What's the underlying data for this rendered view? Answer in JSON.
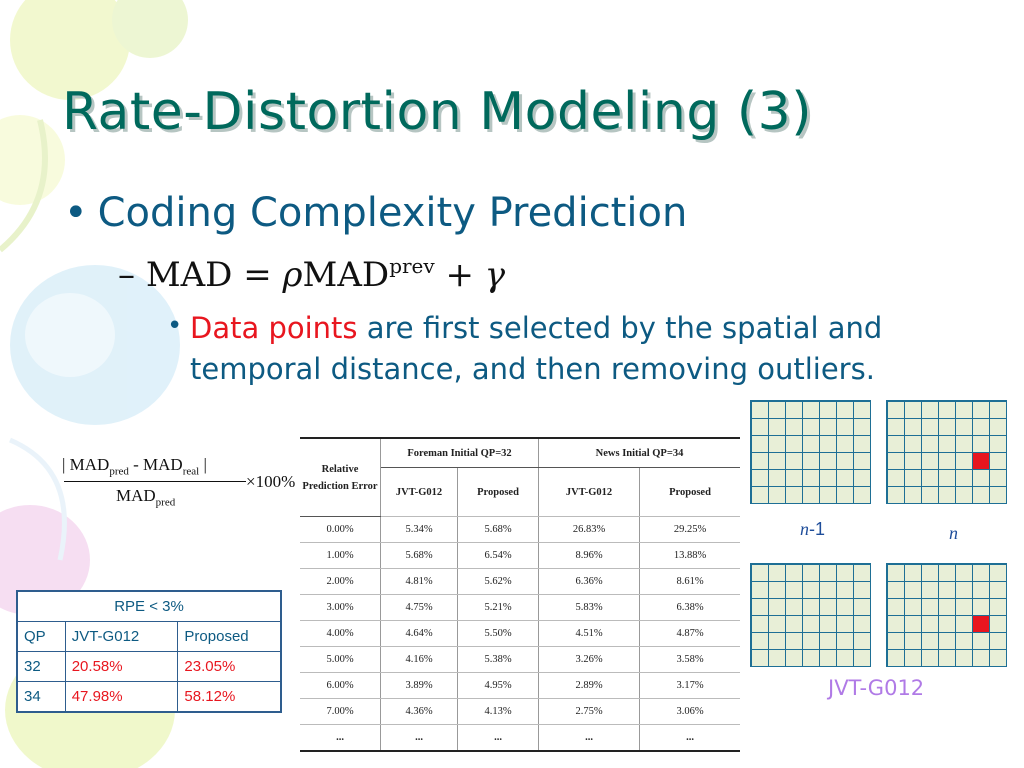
{
  "slide": {
    "title": "Rate-Distortion Modeling (3)",
    "bullet1": "Coding Complexity Prediction",
    "bullet2": {
      "dash": "–",
      "lhs": "MAD = ",
      "rho": "ρ",
      "mad": "MAD",
      "sup": "prev",
      "tail": " + ",
      "gamma": "γ"
    },
    "bullet3": {
      "red": "Data points",
      "rest": " are first selected by the spatial and temporal distance, and then removing outliers."
    },
    "formula": {
      "num_a": "| MAD",
      "num_a_sub": "pred",
      "num_b": " - MAD",
      "num_b_sub": "real",
      "num_c": " |",
      "den": "MAD",
      "den_sub": "pred",
      "times": "×100%"
    },
    "rpe_table": {
      "header": "RPE < 3%",
      "columns": [
        "QP",
        "JVT-G012",
        "Proposed"
      ],
      "rows": [
        [
          "32",
          "20.58%",
          "23.05%"
        ],
        [
          "34",
          "47.98%",
          "58.12%"
        ]
      ]
    },
    "results_table": {
      "corner": "Relative Prediction Error",
      "group1": "Foreman Initial QP=32",
      "group2": "News Initial QP=34",
      "sub": [
        "JVT-G012",
        "Proposed",
        "JVT-G012",
        "Proposed"
      ],
      "rows": [
        [
          "0.00%",
          "5.34%",
          "5.68%",
          "26.83%",
          "29.25%"
        ],
        [
          "1.00%",
          "5.68%",
          "6.54%",
          "8.96%",
          "13.88%"
        ],
        [
          "2.00%",
          "4.81%",
          "5.62%",
          "6.36%",
          "8.61%"
        ],
        [
          "3.00%",
          "4.75%",
          "5.21%",
          "5.83%",
          "6.38%"
        ],
        [
          "4.00%",
          "4.64%",
          "5.50%",
          "4.51%",
          "4.87%"
        ],
        [
          "5.00%",
          "4.16%",
          "5.38%",
          "3.26%",
          "3.58%"
        ],
        [
          "6.00%",
          "3.89%",
          "4.95%",
          "2.89%",
          "3.17%"
        ],
        [
          "7.00%",
          "4.36%",
          "4.13%",
          "2.75%",
          "3.06%"
        ],
        [
          "...",
          "...",
          "...",
          "...",
          "..."
        ]
      ]
    },
    "grid_labels": {
      "prev_n": "n",
      "prev_suffix": "-1",
      "cur_n": "n"
    },
    "jvt_label": "JVT-G012",
    "colors": {
      "title": "#00695c",
      "bullet": "#0d5a82",
      "highlight": "#e8161f",
      "grid_line": "#1e6f95",
      "jvt_label": "#b07ae6"
    }
  }
}
